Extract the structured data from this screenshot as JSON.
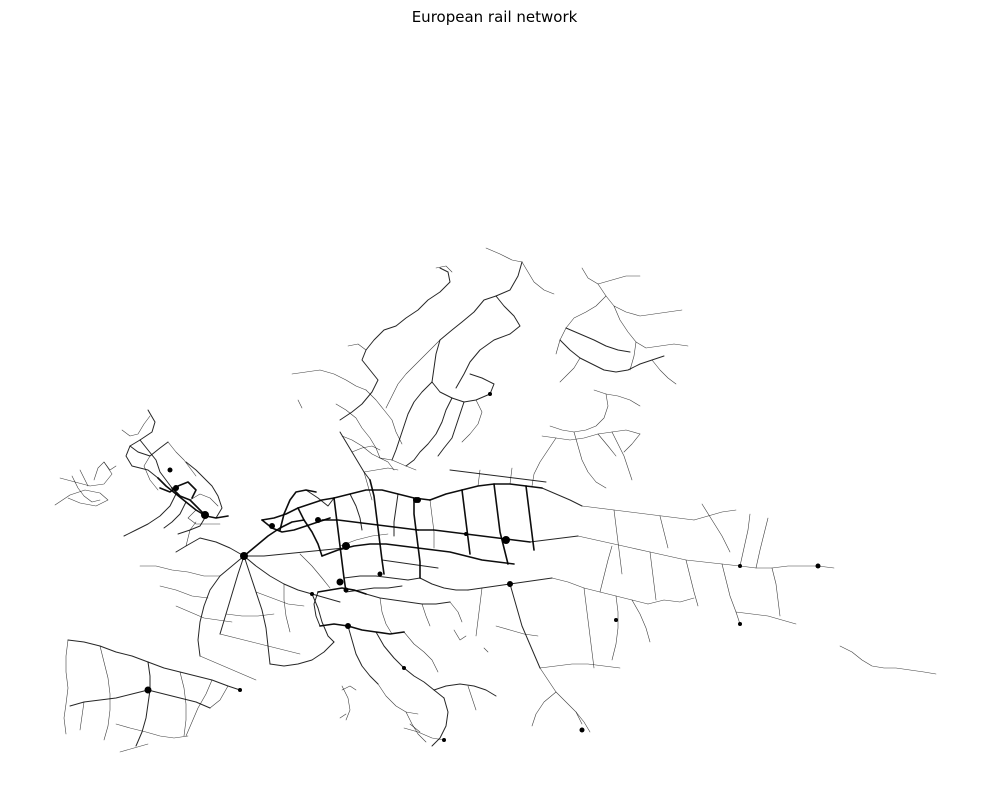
{
  "figure": {
    "title": "European rail network",
    "background": "#ffffff",
    "line_color": "#000000"
  }
}
